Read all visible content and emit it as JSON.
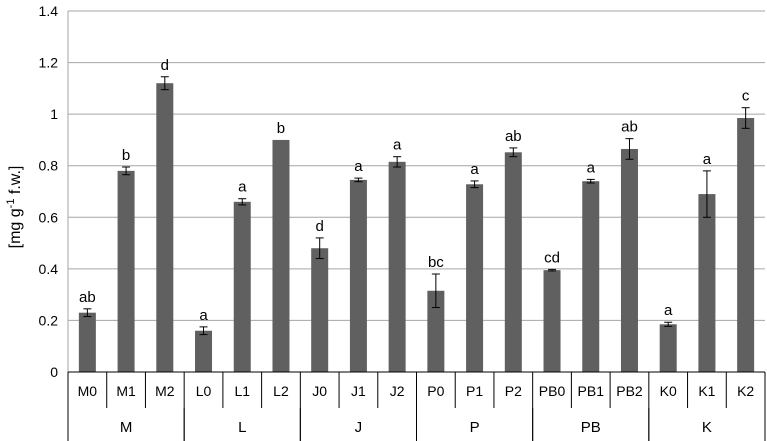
{
  "chart_data": {
    "type": "bar",
    "ylabel_prefix": "[mg g",
    "ylabel_sup": "-1",
    "ylabel_suffix": " f.w.]",
    "ylim": [
      0,
      1.4
    ],
    "yticks": [
      "0",
      "0.2",
      "0.4",
      "0.6",
      "0.8",
      "1",
      "1.2",
      "1.4"
    ],
    "grid": true,
    "bar_color": "#606060",
    "groups": [
      {
        "name": "M",
        "categories": [
          "M0",
          "M1",
          "M2"
        ]
      },
      {
        "name": "L",
        "categories": [
          "L0",
          "L1",
          "L2"
        ]
      },
      {
        "name": "J",
        "categories": [
          "J0",
          "J1",
          "J2"
        ]
      },
      {
        "name": "P",
        "categories": [
          "P0",
          "P1",
          "P2"
        ]
      },
      {
        "name": "PB",
        "categories": [
          "PB0",
          "PB1",
          "PB2"
        ]
      },
      {
        "name": "K",
        "categories": [
          "K0",
          "K1",
          "K2"
        ]
      }
    ],
    "categories": [
      "M0",
      "M1",
      "M2",
      "L0",
      "L1",
      "L2",
      "J0",
      "J1",
      "J2",
      "P0",
      "P1",
      "P2",
      "PB0",
      "PB1",
      "PB2",
      "K0",
      "K1",
      "K2"
    ],
    "values": [
      0.23,
      0.78,
      1.12,
      0.16,
      0.66,
      0.9,
      0.48,
      0.745,
      0.815,
      0.315,
      0.728,
      0.852,
      0.395,
      0.74,
      0.865,
      0.185,
      0.69,
      0.985
    ],
    "errors": [
      0.015,
      0.015,
      0.025,
      0.015,
      0.012,
      0,
      0.04,
      0.007,
      0.02,
      0.065,
      0.013,
      0.017,
      0.003,
      0.007,
      0.04,
      0.008,
      0.09,
      0.04
    ],
    "labels": [
      "ab",
      "b",
      "d",
      "a",
      "a",
      "b",
      "d",
      "a",
      "a",
      "bc",
      "a",
      "ab",
      "cd",
      "a",
      "ab",
      "a",
      "a",
      "c"
    ]
  }
}
